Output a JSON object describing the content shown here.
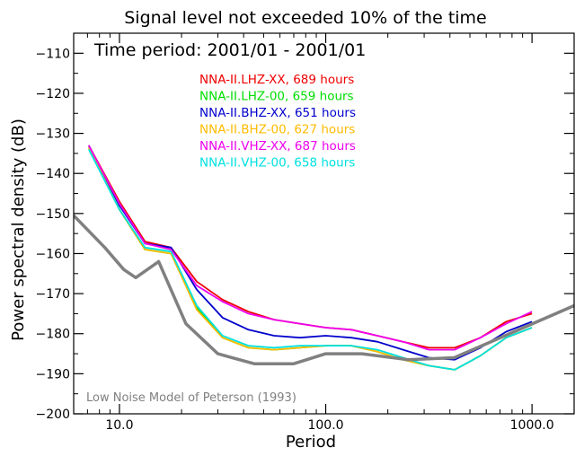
{
  "chart_data": {
    "type": "line",
    "title": "Signal level not exceeded 10% of the time",
    "subtitle": "Time period: 2001/01 - 2001/01",
    "xlabel": "Period",
    "ylabel": "Power spectral density (dB)",
    "xscale": "log",
    "xlim": [
      6.0,
      1600.0
    ],
    "ylim": [
      -200,
      -105
    ],
    "x_ticks": [
      {
        "value": 10.0,
        "label": "10.0"
      },
      {
        "value": 100.0,
        "label": "100.0"
      },
      {
        "value": 1000.0,
        "label": "1000.0"
      }
    ],
    "y_ticks": [
      {
        "value": -110,
        "label": "−110"
      },
      {
        "value": -120,
        "label": "−120"
      },
      {
        "value": -130,
        "label": "−130"
      },
      {
        "value": -140,
        "label": "−140"
      },
      {
        "value": -150,
        "label": "−150"
      },
      {
        "value": -160,
        "label": "−160"
      },
      {
        "value": -170,
        "label": "−170"
      },
      {
        "value": -180,
        "label": "−180"
      },
      {
        "value": -190,
        "label": "−190"
      },
      {
        "value": -200,
        "label": "−200"
      }
    ],
    "grid": false,
    "legend_position": "top-center",
    "series": [
      {
        "name": "NNA-II.LHZ-XX, 689 hours",
        "color": "#ee0000",
        "x": [
          7.1,
          10,
          13.3,
          17.8,
          23.7,
          31.6,
          42.2,
          56.2,
          75,
          100,
          133,
          178,
          237,
          316,
          422,
          562,
          750,
          1000
        ],
        "y": [
          -133,
          -147,
          -157,
          -158.5,
          -167,
          -171.5,
          -174.5,
          -176.5,
          -177.5,
          -178.5,
          -179,
          -180.5,
          -182,
          -183.5,
          -183.5,
          -181,
          -177,
          -175
        ]
      },
      {
        "name": "NNA-II.LHZ-00, 659 hours",
        "color": "#00dd00",
        "x": [
          7.1,
          10,
          13.3,
          17.8,
          23.7,
          31.6,
          42.2,
          56.2,
          75,
          100,
          133,
          178,
          237,
          316,
          422,
          562,
          750,
          1000
        ],
        "y": [
          -133.5,
          -149,
          -159,
          -160,
          -173.5,
          -181,
          -183.5,
          -184,
          -183.5,
          -183,
          -183,
          -184.5,
          -186.5,
          -188,
          -189,
          -185.5,
          -181,
          -178.5
        ]
      },
      {
        "name": "NNA-II.BHZ-XX, 651 hours",
        "color": "#0000cc",
        "x": [
          7.1,
          10,
          13.3,
          17.8,
          23.7,
          31.6,
          42.2,
          56.2,
          75,
          100,
          133,
          178,
          237,
          316,
          422,
          562,
          750,
          1000
        ],
        "y": [
          -133,
          -148,
          -157.5,
          -158.5,
          -169,
          -176,
          -179,
          -180.5,
          -181,
          -180.5,
          -181,
          -182,
          -184,
          -186,
          -186.5,
          -183.5,
          -179.5,
          -177
        ]
      },
      {
        "name": "NNA-II.BHZ-00, 627 hours",
        "color": "#ffbb00",
        "x": [
          7.1,
          10,
          13.3,
          17.8,
          23.7,
          31.6,
          42.2,
          56.2,
          75,
          100,
          133,
          178,
          237,
          316,
          422,
          562,
          750,
          1000
        ],
        "y": [
          -133.5,
          -149,
          -159,
          -160,
          -174,
          -181,
          -183.5,
          -184,
          -183.5,
          -183,
          -183,
          -184.5,
          -186.5,
          -188,
          -189,
          -185.5,
          -181,
          -178.5
        ]
      },
      {
        "name": "NNA-II.VHZ-XX, 687 hours",
        "color": "#ee00ee",
        "x": [
          7.1,
          10,
          13.3,
          17.8,
          23.7,
          31.6,
          42.2,
          56.2,
          75,
          100,
          133,
          178,
          237,
          316,
          422,
          562,
          750,
          1000
        ],
        "y": [
          -133,
          -147.5,
          -157.5,
          -159,
          -168,
          -172,
          -175,
          -176.5,
          -177.5,
          -178.5,
          -179,
          -180.5,
          -182,
          -184,
          -184,
          -181,
          -177.5,
          -174.5
        ]
      },
      {
        "name": "NNA-II.VHZ-00, 658 hours",
        "color": "#00e0e0",
        "x": [
          7.1,
          10,
          13.3,
          17.8,
          23.7,
          31.6,
          42.2,
          56.2,
          75,
          100,
          133,
          178,
          237,
          316,
          422,
          562,
          750,
          1000
        ],
        "y": [
          -134,
          -149,
          -158.5,
          -159.5,
          -173,
          -180.5,
          -183,
          -183.5,
          -183,
          -183,
          -183,
          -184,
          -186,
          -188,
          -189,
          -185.5,
          -181,
          -178.5
        ]
      },
      {
        "name": "Low Noise Model of Peterson (1993)",
        "color": "#808080",
        "x": [
          6,
          8.5,
          10.5,
          12,
          15.5,
          21,
          30,
          45,
          70,
          100,
          150,
          250,
          420,
          1600
        ],
        "y": [
          -150.5,
          -158.5,
          -164,
          -166,
          -162,
          -177.5,
          -185,
          -187.5,
          -187.5,
          -185,
          -185,
          -186.5,
          -186,
          -173
        ]
      }
    ]
  }
}
